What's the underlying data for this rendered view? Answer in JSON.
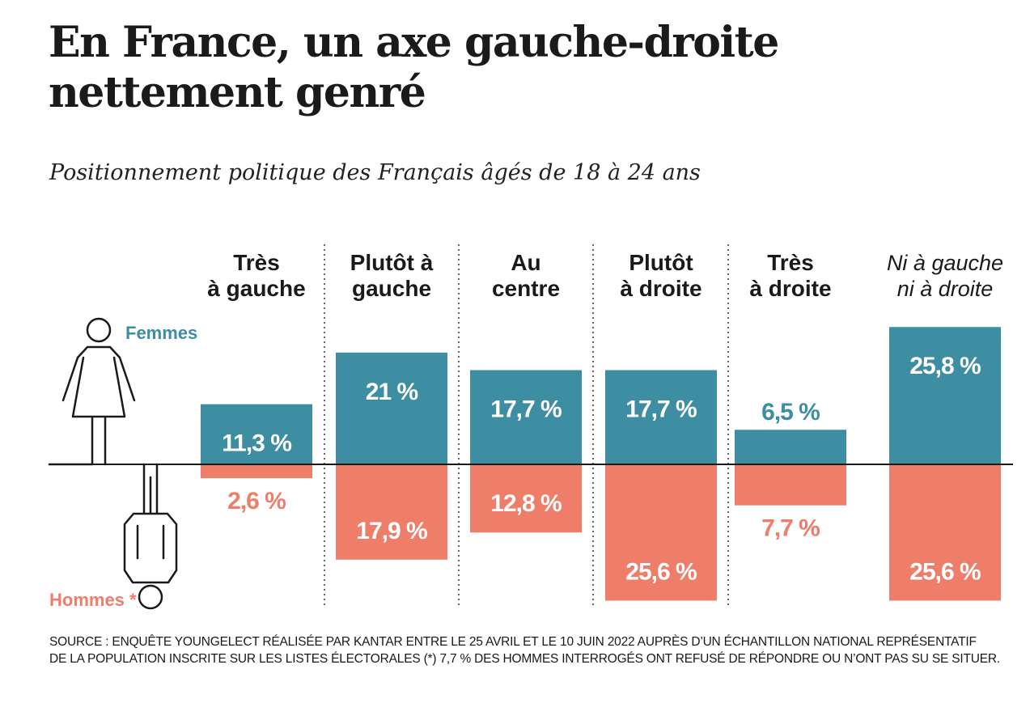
{
  "title": "En France, un axe gauche-droite nettement genré",
  "subtitle": "Positionnement politique des Français âgés de 18 à 24 ans",
  "source_lines": [
    "SOURCE : ENQUÊTE YOUNGELECT RÉALISÉE PAR KANTAR ENTRE LE 25 AVRIL ET LE 10 JUIN 2022 AUPRÈS D’UN ÉCHANTILLON NATIONAL REPRÉSENTATIF",
    "DE LA POPULATION INSCRITE SUR LES LISTES ÉLECTORALES (*) 7,7 % DES HOMMES INTERROGÉS ONT REFUSÉ DE RÉPONDRE OU N’ONT PAS SU SE SITUER."
  ],
  "colors": {
    "femmes": "#3e8ea3",
    "hommes": "#ee7d6a",
    "text": "#1a1a1a"
  },
  "icons": [
    "woman-figure-icon",
    "man-figure-icon"
  ],
  "chart_data": {
    "type": "bar",
    "layout": "diverging",
    "categories": [
      [
        "Très",
        "à gauche"
      ],
      [
        "Plutôt à",
        "gauche"
      ],
      [
        "Au",
        "centre"
      ],
      [
        "Plutôt",
        "à droite"
      ],
      [
        "Très",
        "à droite"
      ],
      [
        "Ni à gauche",
        "ni à droite"
      ]
    ],
    "series": [
      {
        "name": "Femmes",
        "values": [
          11.3,
          21,
          17.7,
          17.7,
          6.5,
          25.8
        ],
        "labels": [
          "11,3 %",
          "21 %",
          "17,7 %",
          "17,7 %",
          "6,5 %",
          "25,8 %"
        ]
      },
      {
        "name": "Hommes *",
        "values": [
          2.6,
          17.9,
          12.8,
          25.6,
          7.7,
          25.6
        ],
        "labels": [
          "2,6 %",
          "17,9 %",
          "12,8 %",
          "25,6 %",
          "7,7 %",
          "25,6 %"
        ]
      }
    ],
    "unit": "%",
    "ylim": [
      -26,
      26
    ],
    "grid": false,
    "legend": "left, next to figure icons"
  }
}
